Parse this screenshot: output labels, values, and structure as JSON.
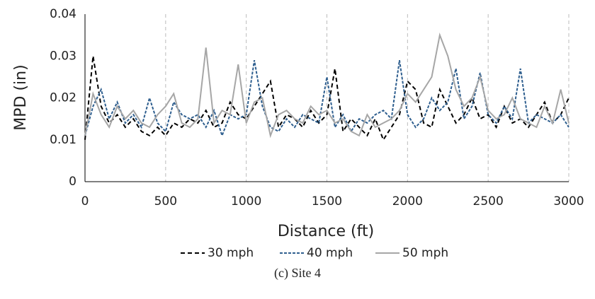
{
  "chart_data": {
    "type": "line",
    "caption": "(c) Site 4",
    "xlabel": "Distance (ft)",
    "ylabel": "MPD (in)",
    "xlim": [
      0,
      3000
    ],
    "ylim": [
      0,
      0.04
    ],
    "xticks": [
      0,
      500,
      1000,
      1500,
      2000,
      2500,
      3000
    ],
    "yticks": [
      0,
      0.01,
      0.02,
      0.03,
      0.04
    ],
    "xgrid": true,
    "x": [
      0,
      50,
      100,
      150,
      200,
      250,
      300,
      350,
      400,
      450,
      500,
      550,
      600,
      650,
      700,
      750,
      800,
      850,
      900,
      950,
      1000,
      1050,
      1100,
      1150,
      1200,
      1250,
      1300,
      1350,
      1400,
      1450,
      1500,
      1550,
      1600,
      1650,
      1700,
      1750,
      1800,
      1850,
      1900,
      1950,
      2000,
      2050,
      2100,
      2150,
      2200,
      2250,
      2300,
      2350,
      2400,
      2450,
      2500,
      2550,
      2600,
      2650,
      2700,
      2750,
      2800,
      2850,
      2900,
      2950,
      3000
    ],
    "series": [
      {
        "name": "30 mph",
        "color": "#000000",
        "dash": "6 4",
        "values": [
          0.01,
          0.03,
          0.018,
          0.014,
          0.016,
          0.013,
          0.015,
          0.012,
          0.011,
          0.013,
          0.011,
          0.014,
          0.013,
          0.015,
          0.014,
          0.017,
          0.013,
          0.014,
          0.019,
          0.016,
          0.015,
          0.018,
          0.021,
          0.024,
          0.013,
          0.016,
          0.015,
          0.013,
          0.017,
          0.014,
          0.016,
          0.027,
          0.012,
          0.015,
          0.013,
          0.011,
          0.015,
          0.01,
          0.013,
          0.016,
          0.024,
          0.022,
          0.014,
          0.013,
          0.022,
          0.018,
          0.014,
          0.016,
          0.02,
          0.015,
          0.016,
          0.013,
          0.018,
          0.014,
          0.015,
          0.013,
          0.016,
          0.019,
          0.014,
          0.016,
          0.02
        ]
      },
      {
        "name": "40 mph",
        "color": "#2f5f8f",
        "dash": "4 2",
        "values": [
          0.011,
          0.018,
          0.022,
          0.015,
          0.019,
          0.014,
          0.016,
          0.013,
          0.02,
          0.014,
          0.012,
          0.019,
          0.016,
          0.015,
          0.016,
          0.013,
          0.017,
          0.011,
          0.016,
          0.015,
          0.016,
          0.029,
          0.018,
          0.013,
          0.012,
          0.015,
          0.013,
          0.016,
          0.015,
          0.014,
          0.025,
          0.013,
          0.016,
          0.012,
          0.015,
          0.014,
          0.016,
          0.017,
          0.015,
          0.029,
          0.016,
          0.013,
          0.015,
          0.02,
          0.017,
          0.019,
          0.027,
          0.015,
          0.018,
          0.026,
          0.016,
          0.014,
          0.018,
          0.015,
          0.027,
          0.014,
          0.016,
          0.015,
          0.014,
          0.016,
          0.013
        ]
      },
      {
        "name": "50 mph",
        "color": "#a6a6a6",
        "dash": "",
        "values": [
          0.011,
          0.021,
          0.016,
          0.013,
          0.018,
          0.015,
          0.017,
          0.014,
          0.013,
          0.016,
          0.018,
          0.021,
          0.014,
          0.013,
          0.015,
          0.032,
          0.014,
          0.017,
          0.016,
          0.028,
          0.014,
          0.019,
          0.02,
          0.011,
          0.016,
          0.017,
          0.015,
          0.014,
          0.018,
          0.016,
          0.017,
          0.014,
          0.015,
          0.012,
          0.011,
          0.016,
          0.013,
          0.014,
          0.015,
          0.017,
          0.021,
          0.019,
          0.022,
          0.025,
          0.035,
          0.03,
          0.022,
          0.018,
          0.02,
          0.025,
          0.017,
          0.015,
          0.016,
          0.02,
          0.015,
          0.014,
          0.013,
          0.018,
          0.014,
          0.022,
          0.014
        ]
      }
    ]
  }
}
